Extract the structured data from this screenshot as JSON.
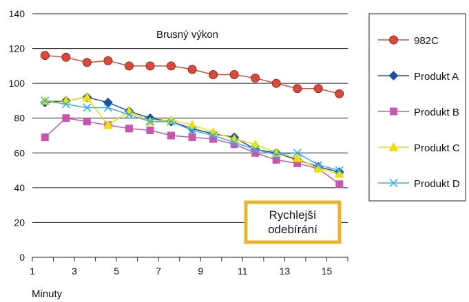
{
  "chart_data": {
    "type": "line",
    "title": "Brusný výkon",
    "xlabel": "Minuty",
    "ylabel": "",
    "xlim": [
      1,
      16
    ],
    "ylim": [
      0,
      140
    ],
    "x_ticks": [
      1,
      3,
      5,
      7,
      9,
      11,
      13,
      15
    ],
    "y_ticks": [
      0,
      20,
      40,
      60,
      80,
      100,
      120,
      140
    ],
    "grid": "horizontal",
    "legend_position": "right",
    "annotation": "Rychlejší odebírání",
    "annotation_lines": [
      "Rychlejší",
      "odebírání"
    ],
    "x": [
      1.6,
      2.6,
      3.6,
      4.6,
      5.6,
      6.6,
      7.6,
      8.6,
      9.6,
      10.6,
      11.6,
      12.6,
      13.6,
      14.6,
      15.6
    ],
    "series": [
      {
        "name": "982C",
        "color": "#d94a3d",
        "marker": "circle",
        "values": [
          116,
          115,
          112,
          113,
          110,
          110,
          110,
          108,
          105,
          105,
          103,
          100,
          97,
          97,
          94
        ]
      },
      {
        "name": "Produkt A",
        "color": "#1f4e9c",
        "marker": "diamond",
        "values": [
          89,
          90,
          92,
          89,
          84,
          80,
          78,
          74,
          71,
          69,
          62,
          60,
          56,
          52,
          49
        ]
      },
      {
        "name": "Produkt B",
        "color": "#c855b0",
        "marker": "square",
        "values": [
          69,
          80,
          78,
          76,
          74,
          73,
          70,
          69,
          68,
          65,
          60,
          56,
          54,
          51,
          42
        ]
      },
      {
        "name": "Produkt C",
        "color": "#f0e000",
        "marker": "triangle",
        "values": [
          90,
          90,
          92,
          76,
          84,
          78,
          79,
          76,
          72,
          68,
          65,
          60,
          57,
          51,
          48
        ]
      },
      {
        "name": "Produkt D",
        "color": "#3aaee8",
        "marker": "x",
        "values": [
          90,
          88,
          86,
          86,
          82,
          78,
          78,
          73,
          70,
          66,
          62,
          59,
          60,
          53,
          50
        ]
      }
    ]
  }
}
